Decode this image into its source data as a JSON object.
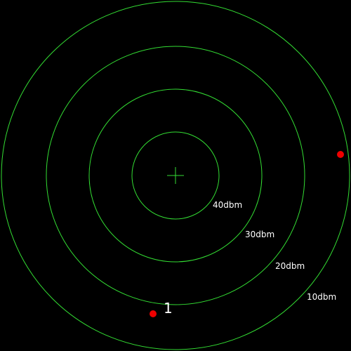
{
  "radar": {
    "ring_color": "#33dd33",
    "crosshair_color": "#33dd33",
    "marker_color": "#ee0000",
    "rings": [
      {
        "label": "40dbm"
      },
      {
        "label": "30dbm"
      },
      {
        "label": "20dbm"
      },
      {
        "label": "10dbm"
      }
    ],
    "markers": [
      {
        "label": "1"
      },
      {
        "label": ""
      }
    ]
  }
}
